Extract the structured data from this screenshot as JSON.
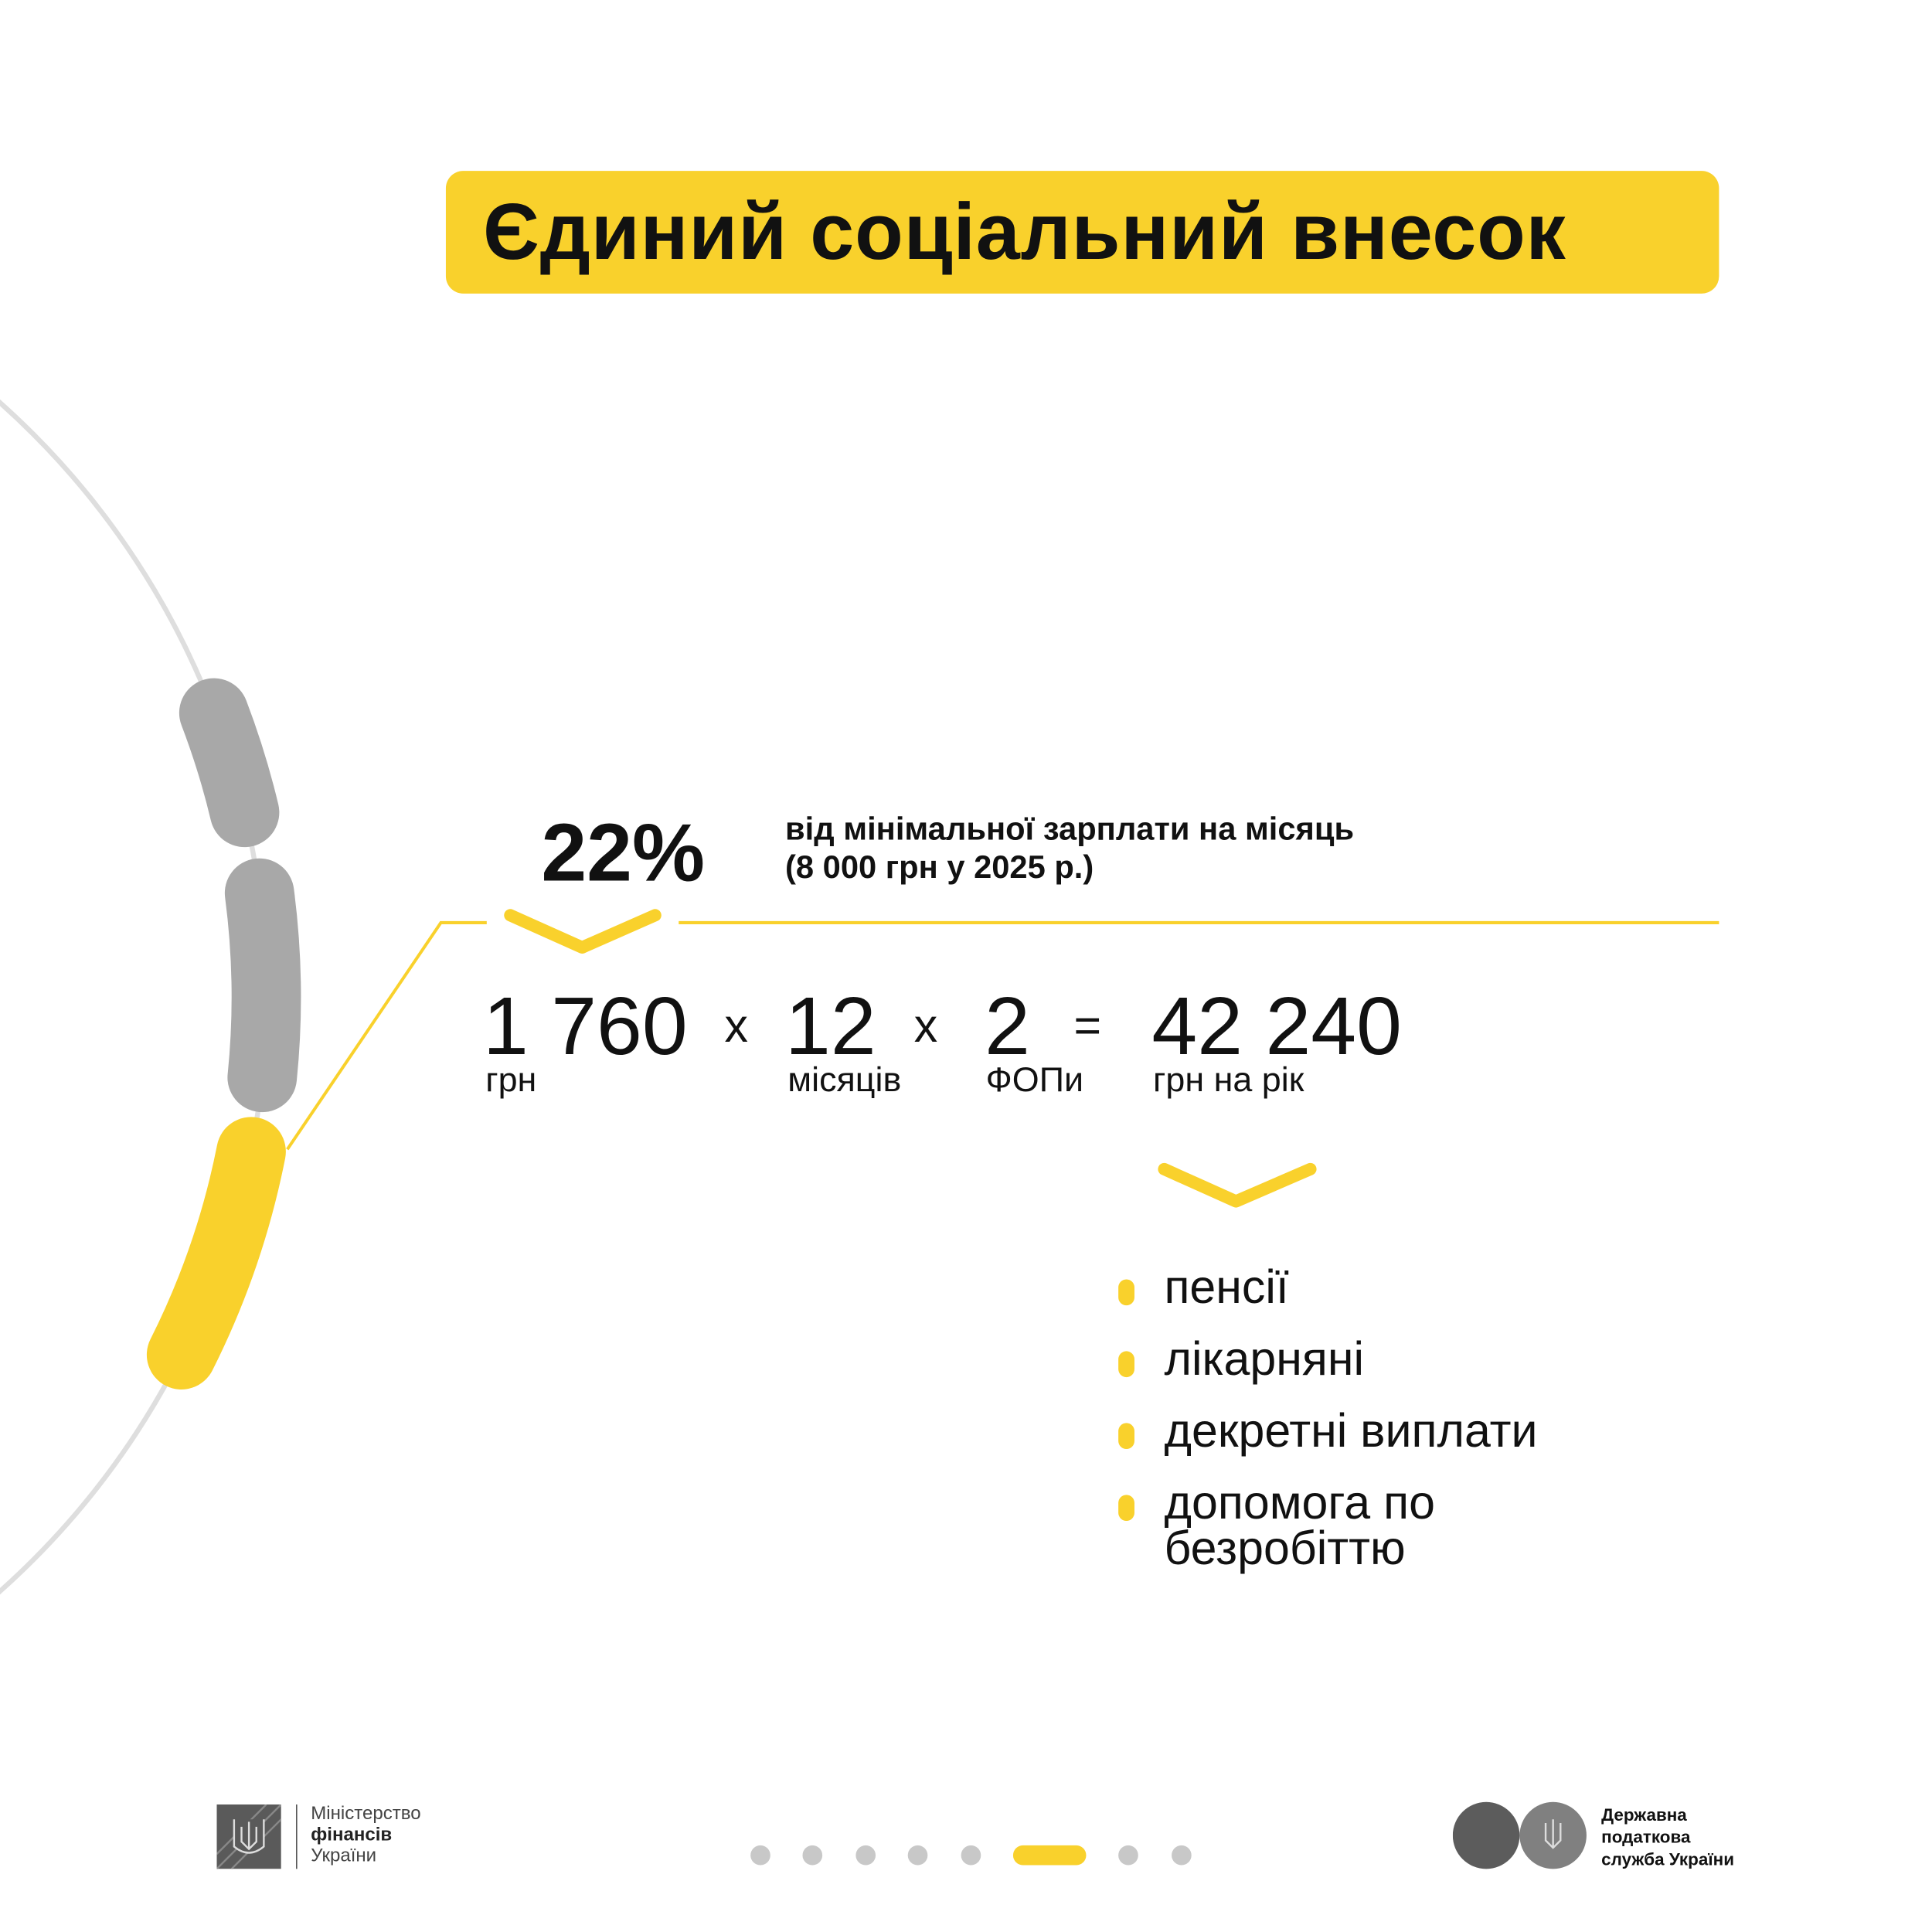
{
  "title": "Єдиний соціальний внесок",
  "rate": {
    "percent": "22%",
    "description_line1": "від мінімальної зарплати на місяць",
    "description_line2": "(8 000 грн у 2025 р.)"
  },
  "equation": {
    "term1": {
      "value": "1 760",
      "unit": "грн"
    },
    "op1": "x",
    "term2": {
      "value": "12",
      "unit": "місяців"
    },
    "op2": "x",
    "term3": {
      "value": "2",
      "unit": "ФОПи"
    },
    "eq": "=",
    "result": {
      "value": "42 240",
      "unit": "грн на рік"
    }
  },
  "benefits": [
    "пенсії",
    "лікарняні",
    "декретні виплати",
    "допомога по",
    "безробіттю"
  ],
  "pagination": {
    "total": 8,
    "active": 6
  },
  "footer": {
    "left_logo": {
      "line1": "Міністерство",
      "line2": "фінансів",
      "line3": "України"
    },
    "right_logo": {
      "line1": "Державна",
      "line2": "податкова",
      "line3": "служба України"
    }
  },
  "colors": {
    "accent": "#F9D12C",
    "gray": "#A8A8A8",
    "text": "#111111"
  }
}
